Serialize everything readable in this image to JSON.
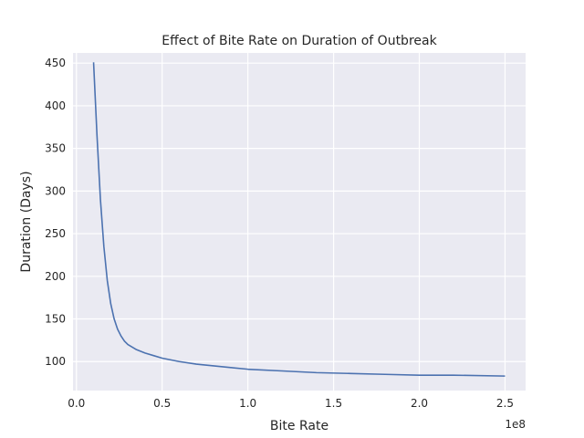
{
  "chart_data": {
    "type": "line",
    "title": "Effect of Bite Rate on Duration of Outbreak",
    "xlabel": "Bite Rate",
    "ylabel": "Duration (Days)",
    "x_offset_label": "1e8",
    "xlim": [
      -2000000,
      262000000
    ],
    "ylim": [
      66,
      462
    ],
    "x_ticks": [
      0,
      50000000,
      100000000,
      150000000,
      200000000,
      250000000
    ],
    "x_tick_labels": [
      "0.0",
      "0.5",
      "1.0",
      "1.5",
      "2.0",
      "2.5"
    ],
    "y_ticks": [
      100,
      150,
      200,
      250,
      300,
      350,
      400,
      450
    ],
    "y_tick_labels": [
      "100",
      "150",
      "200",
      "250",
      "300",
      "350",
      "400",
      "450"
    ],
    "grid": true,
    "colors": {
      "background": "#eaeaf2",
      "grid": "#ffffff",
      "line": "#4c72b0"
    },
    "series": [
      {
        "x": [
          10000000,
          12000000,
          14000000,
          16000000,
          18000000,
          20000000,
          22000000,
          24000000,
          26000000,
          28000000,
          30000000,
          35000000,
          40000000,
          45000000,
          50000000,
          60000000,
          70000000,
          80000000,
          90000000,
          100000000,
          120000000,
          140000000,
          160000000,
          180000000,
          200000000,
          220000000,
          250000000
        ],
        "values": [
          451,
          365,
          290,
          235,
          195,
          168,
          150,
          138,
          130,
          124,
          120,
          114,
          110,
          107,
          104,
          100,
          97,
          95,
          93,
          91,
          89,
          87,
          86,
          85,
          84,
          84,
          83
        ]
      }
    ]
  }
}
